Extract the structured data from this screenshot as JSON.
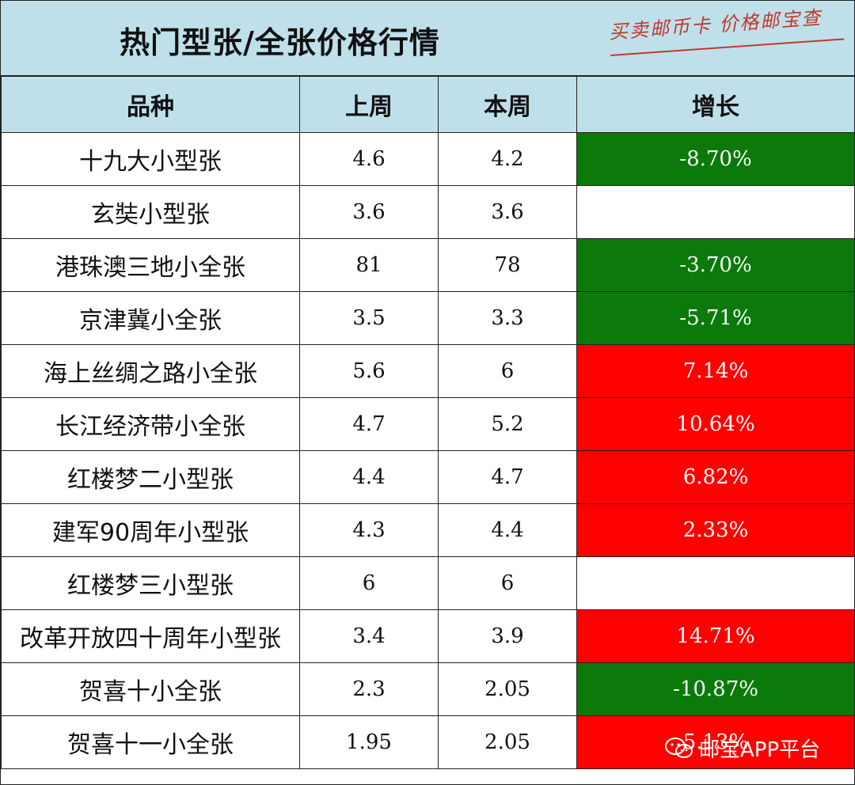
{
  "title": "热门型张/全张价格行情",
  "stamp": "买卖邮币卡 价格邮宝查",
  "columns": [
    "品种",
    "上周",
    "本周",
    "增长"
  ],
  "rows": [
    {
      "name": "十九大小型张",
      "last_week": "4.6",
      "this_week": "4.2",
      "growth": "-8.70%",
      "trend": "down"
    },
    {
      "name": "玄奘小型张",
      "last_week": "3.6",
      "this_week": "3.6",
      "growth": "",
      "trend": "flat"
    },
    {
      "name": "港珠澳三地小全张",
      "last_week": "81",
      "this_week": "78",
      "growth": "-3.70%",
      "trend": "down"
    },
    {
      "name": "京津冀小全张",
      "last_week": "3.5",
      "this_week": "3.3",
      "growth": "-5.71%",
      "trend": "down"
    },
    {
      "name": "海上丝绸之路小全张",
      "last_week": "5.6",
      "this_week": "6",
      "growth": "7.14%",
      "trend": "up"
    },
    {
      "name": "长江经济带小全张",
      "last_week": "4.7",
      "this_week": "5.2",
      "growth": "10.64%",
      "trend": "up"
    },
    {
      "name": "红楼梦二小型张",
      "last_week": "4.4",
      "this_week": "4.7",
      "growth": "6.82%",
      "trend": "up"
    },
    {
      "name": "建军90周年小型张",
      "last_week": "4.3",
      "this_week": "4.4",
      "growth": "2.33%",
      "trend": "up"
    },
    {
      "name": "红楼梦三小型张",
      "last_week": "6",
      "this_week": "6",
      "growth": "",
      "trend": "flat"
    },
    {
      "name": "改革开放四十周年小型张",
      "last_week": "3.4",
      "this_week": "3.9",
      "growth": "14.71%",
      "trend": "up"
    },
    {
      "name": "贺喜十小全张",
      "last_week": "2.3",
      "this_week": "2.05",
      "growth": "-10.87%",
      "trend": "down"
    },
    {
      "name": "贺喜十一小全张",
      "last_week": "1.95",
      "this_week": "2.05",
      "growth": "5.13%",
      "trend": "up"
    }
  ],
  "watermark": "邮宝APP平台",
  "colors": {
    "header_bg": "#bfe0eb",
    "up": "#ff0000",
    "down": "#0b7a0b",
    "stamp": "#c0392b"
  }
}
